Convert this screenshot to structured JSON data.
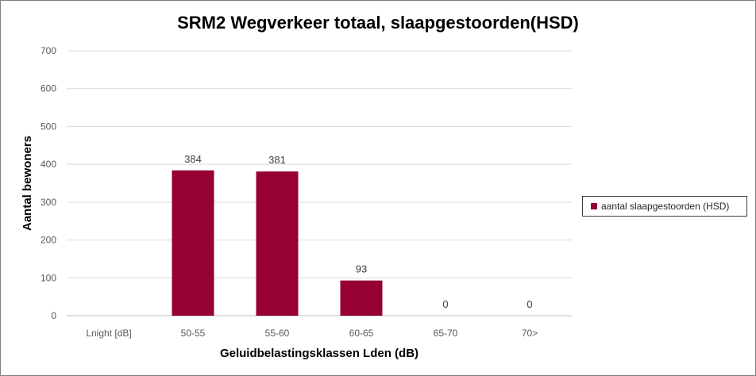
{
  "chart_data": {
    "type": "bar",
    "title": "SRM2 Wegverkeer totaal, slaapgestoorden(HSD)",
    "xlabel": "Geluidbelastingsklassen Lden (dB)",
    "ylabel": "Aantal bewoners",
    "categories": [
      "Lnight [dB]",
      "50-55",
      "55-60",
      "60-65",
      "65-70",
      "70>"
    ],
    "series": [
      {
        "name": "aantal slaapgestoorden (HSD)",
        "values": [
          null,
          384,
          381,
          93,
          0,
          0
        ],
        "data_labels": [
          "",
          "384",
          "381",
          "93",
          "0",
          "0"
        ],
        "color": "#960032"
      }
    ],
    "ylim": [
      0,
      700
    ],
    "yticks": [
      0,
      100,
      200,
      300,
      400,
      500,
      600,
      700
    ],
    "grid": true,
    "legend_position": "right"
  }
}
